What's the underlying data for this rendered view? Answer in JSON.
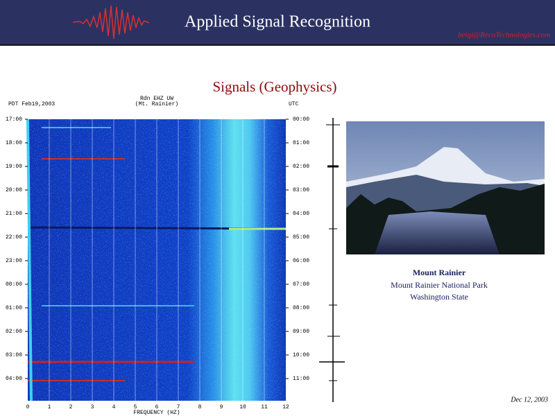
{
  "header": {
    "title": "Applied Signal Recognition",
    "email": "beigi@RecoTechnologies.com"
  },
  "slide_title": "Signals (Geophysics)",
  "spectrogram": {
    "top_left": "PDT Feb19,2003",
    "station": "Rdn EHZ UW",
    "location": "(Mt. Rainier)",
    "top_right": "UTC",
    "left_times": [
      "17:00",
      "18:00",
      "19:00",
      "20:00",
      "21:00",
      "22:00",
      "23:00",
      "00:00",
      "01:00",
      "02:00",
      "03:00",
      "04:00"
    ],
    "right_times": [
      "00:00",
      "01:00",
      "02:00",
      "03:00",
      "04:00",
      "05:00",
      "06:00",
      "07:00",
      "08:00",
      "09:00",
      "10:00",
      "11:00"
    ],
    "freq_labels": [
      "0",
      "1",
      "2",
      "3",
      "4",
      "5",
      "6",
      "7",
      "8",
      "9",
      "10",
      "11",
      "12"
    ],
    "x_label": "FREQUENCY (HZ)"
  },
  "photo_caption": {
    "title": "Mount Rainier",
    "lines": [
      "Mount Rainier National Park",
      "Washington State"
    ]
  },
  "footer": {
    "date": "Dec 12, 2003"
  }
}
